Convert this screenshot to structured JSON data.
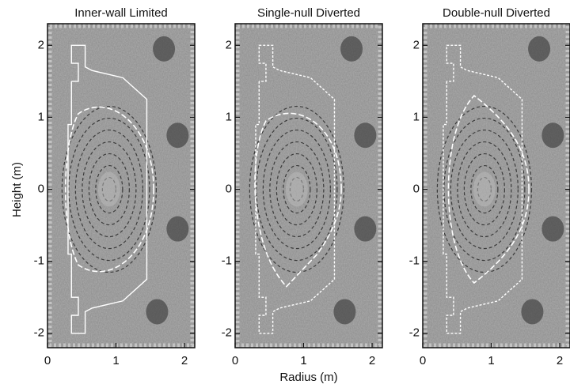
{
  "figure": {
    "xlabel": "Radius (m)",
    "ylabel": "Height (m)",
    "xlim": [
      0,
      2.15
    ],
    "ylim": [
      -2.2,
      2.3
    ],
    "xticks": [
      0,
      1,
      2
    ],
    "yticks": [
      -2,
      -1,
      0,
      1,
      2
    ],
    "panels": [
      {
        "title": "Inner-wall Limited"
      },
      {
        "title": "Single-null Diverted"
      },
      {
        "title": "Double-null Diverted"
      }
    ]
  }
}
